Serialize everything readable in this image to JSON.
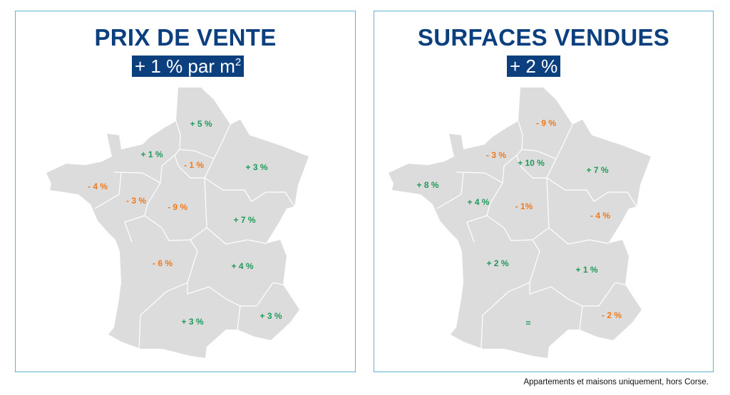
{
  "colors": {
    "title": "#0b3f7e",
    "border": "#5fb4d4",
    "positive": "#1f9a5a",
    "negative": "#ee7a1e",
    "land": "#dcdcdc"
  },
  "left_panel": {
    "title": "PRIX DE VENTE",
    "badge": "+ 1 % par m",
    "badge_sup": "2",
    "regions": [
      {
        "region": "Hauts-de-France",
        "value": "+ 5 %"
      },
      {
        "region": "Normandie",
        "value": "+ 1 %"
      },
      {
        "region": "Île-de-France",
        "value": "- 1 %"
      },
      {
        "region": "Grand Est",
        "value": "+ 3 %"
      },
      {
        "region": "Bretagne",
        "value": "- 4 %"
      },
      {
        "region": "Pays de la Loire",
        "value": "- 3 %"
      },
      {
        "region": "Centre-Val de Loire",
        "value": "- 9 %"
      },
      {
        "region": "Bourgogne-Franche-Comté",
        "value": "+ 7 %"
      },
      {
        "region": "Nouvelle-Aquitaine",
        "value": "- 6 %"
      },
      {
        "region": "Auvergne-Rhône-Alpes",
        "value": "+ 4 %"
      },
      {
        "region": "Occitanie",
        "value": "+ 3 %"
      },
      {
        "region": "Provence-Alpes-Côte d'Azur",
        "value": "+ 3 %"
      }
    ]
  },
  "right_panel": {
    "title": "SURFACES VENDUES",
    "badge": "+ 2 %",
    "regions": [
      {
        "region": "Hauts-de-France",
        "value": "- 9 %"
      },
      {
        "region": "Normandie",
        "value": "- 3 %"
      },
      {
        "region": "Île-de-France",
        "value": "+ 10 %"
      },
      {
        "region": "Grand Est",
        "value": "+ 7 %"
      },
      {
        "region": "Bretagne",
        "value": "+ 8 %"
      },
      {
        "region": "Pays de la Loire",
        "value": "+ 4 %"
      },
      {
        "region": "Centre-Val de Loire",
        "value": "- 1%"
      },
      {
        "region": "Bourgogne-Franche-Comté",
        "value": "- 4 %"
      },
      {
        "region": "Nouvelle-Aquitaine",
        "value": "+ 2 %"
      },
      {
        "region": "Auvergne-Rhône-Alpes",
        "value": "+ 1 %"
      },
      {
        "region": "Occitanie",
        "value": "="
      },
      {
        "region": "Provence-Alpes-Côte d'Azur",
        "value": "- 2 %"
      }
    ]
  },
  "footnote": "Appartements et maisons uniquement, hors Corse."
}
